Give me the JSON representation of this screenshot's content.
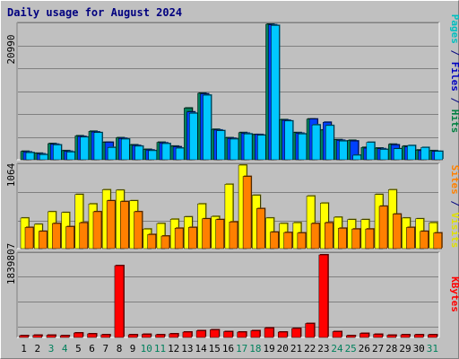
{
  "chart_data": {
    "type": "bar",
    "title": "Daily usage for August 2024",
    "categories": [
      "1",
      "2",
      "3",
      "4",
      "5",
      "6",
      "7",
      "8",
      "9",
      "10",
      "11",
      "12",
      "13",
      "14",
      "15",
      "16",
      "17",
      "18",
      "19",
      "20",
      "21",
      "22",
      "23",
      "24",
      "25",
      "26",
      "27",
      "28",
      "29",
      "30",
      "31"
    ],
    "weekend_days": [
      "3",
      "4",
      "10",
      "11",
      "17",
      "18",
      "24",
      "25",
      "31"
    ],
    "panels": [
      {
        "name": "hits-files-pages",
        "ytick": "20990",
        "ymax": 20990,
        "right_label": [
          {
            "text": "Pages",
            "color": "#00c0c0"
          },
          {
            "text": " / ",
            "color": "#00007f"
          },
          {
            "text": "Files",
            "color": "#0000c0"
          },
          {
            "text": " / ",
            "color": "#00007f"
          },
          {
            "text": "Hits",
            "color": "#008040"
          }
        ],
        "series": [
          {
            "name": "Hits",
            "color": "#00805c",
            "values": [
              1300,
              1000,
              2500,
              1400,
              3700,
              4400,
              2700,
              3400,
              2300,
              1600,
              2700,
              2100,
              8000,
              10300,
              4700,
              3400,
              4200,
              3900,
              20990,
              6200,
              4200,
              6300,
              4600,
              3100,
              3000,
              1900,
              1800,
              2400,
              2100,
              1500,
              1400
            ]
          },
          {
            "name": "Files",
            "color": "#0040ff",
            "values": [
              1200,
              900,
              2400,
              1300,
              3600,
              4300,
              2700,
              3300,
              2200,
              1500,
              2600,
              2000,
              7400,
              10200,
              4600,
              3300,
              4100,
              3900,
              20900,
              6100,
              4100,
              6300,
              5800,
              3000,
              2900,
              1800,
              1700,
              2300,
              2000,
              1400,
              1300
            ]
          },
          {
            "name": "Pages",
            "color": "#00c8ff",
            "values": [
              1100,
              800,
              2300,
              1200,
              3500,
              4200,
              1900,
              3200,
              2100,
              1400,
              2500,
              1800,
              7200,
              10000,
              4500,
              3200,
              4000,
              3800,
              20800,
              6000,
              4000,
              5400,
              5300,
              2900,
              700,
              2700,
              1600,
              1700,
              2200,
              1900,
              1300
            ]
          }
        ]
      },
      {
        "name": "visits-sites",
        "ytick": "1064",
        "ymax": 1064,
        "right_label": [
          {
            "text": "Sites",
            "color": "#ff8000"
          },
          {
            "text": " / ",
            "color": "#00007f"
          },
          {
            "text": "Visits",
            "color": "#e0e000"
          }
        ],
        "series": [
          {
            "name": "Visits",
            "color": "#ffff00",
            "values": [
              390,
              310,
              470,
              460,
              690,
              570,
              750,
              745,
              610,
              250,
              320,
              375,
              405,
              570,
              410,
              820,
              1064,
              680,
              390,
              320,
              330,
              670,
              580,
              400,
              370,
              370,
              690,
              750,
              390,
              380,
              330
            ]
          },
          {
            "name": "Sites",
            "color": "#ff8000",
            "values": [
              270,
              220,
              320,
              280,
              330,
              470,
              610,
              600,
              470,
              180,
              160,
              260,
              270,
              380,
              370,
              340,
              920,
              510,
              210,
              205,
              200,
              320,
              330,
              260,
              250,
              250,
              540,
              440,
              270,
              220,
              200
            ]
          }
        ]
      },
      {
        "name": "kbytes",
        "ytick": "1839807",
        "ymax": 1839807,
        "right_label": [
          {
            "text": "KBytes",
            "color": "#ff0000"
          }
        ],
        "series": [
          {
            "name": "KBytes",
            "color": "#ff0000",
            "values": [
              40000,
              50000,
              50000,
              40000,
              100000,
              80000,
              60000,
              1600000,
              60000,
              70000,
              60000,
              80000,
              120000,
              150000,
              170000,
              130000,
              120000,
              150000,
              210000,
              120000,
              200000,
              310000,
              1839807,
              130000,
              40000,
              90000,
              70000,
              50000,
              60000,
              60000,
              60000
            ]
          }
        ]
      }
    ],
    "colors": {
      "background": "#c0c0c0",
      "grid": "#808080",
      "title": "#00007f",
      "weekday_tick": "#000000",
      "weekend_tick": "#00805c"
    }
  }
}
